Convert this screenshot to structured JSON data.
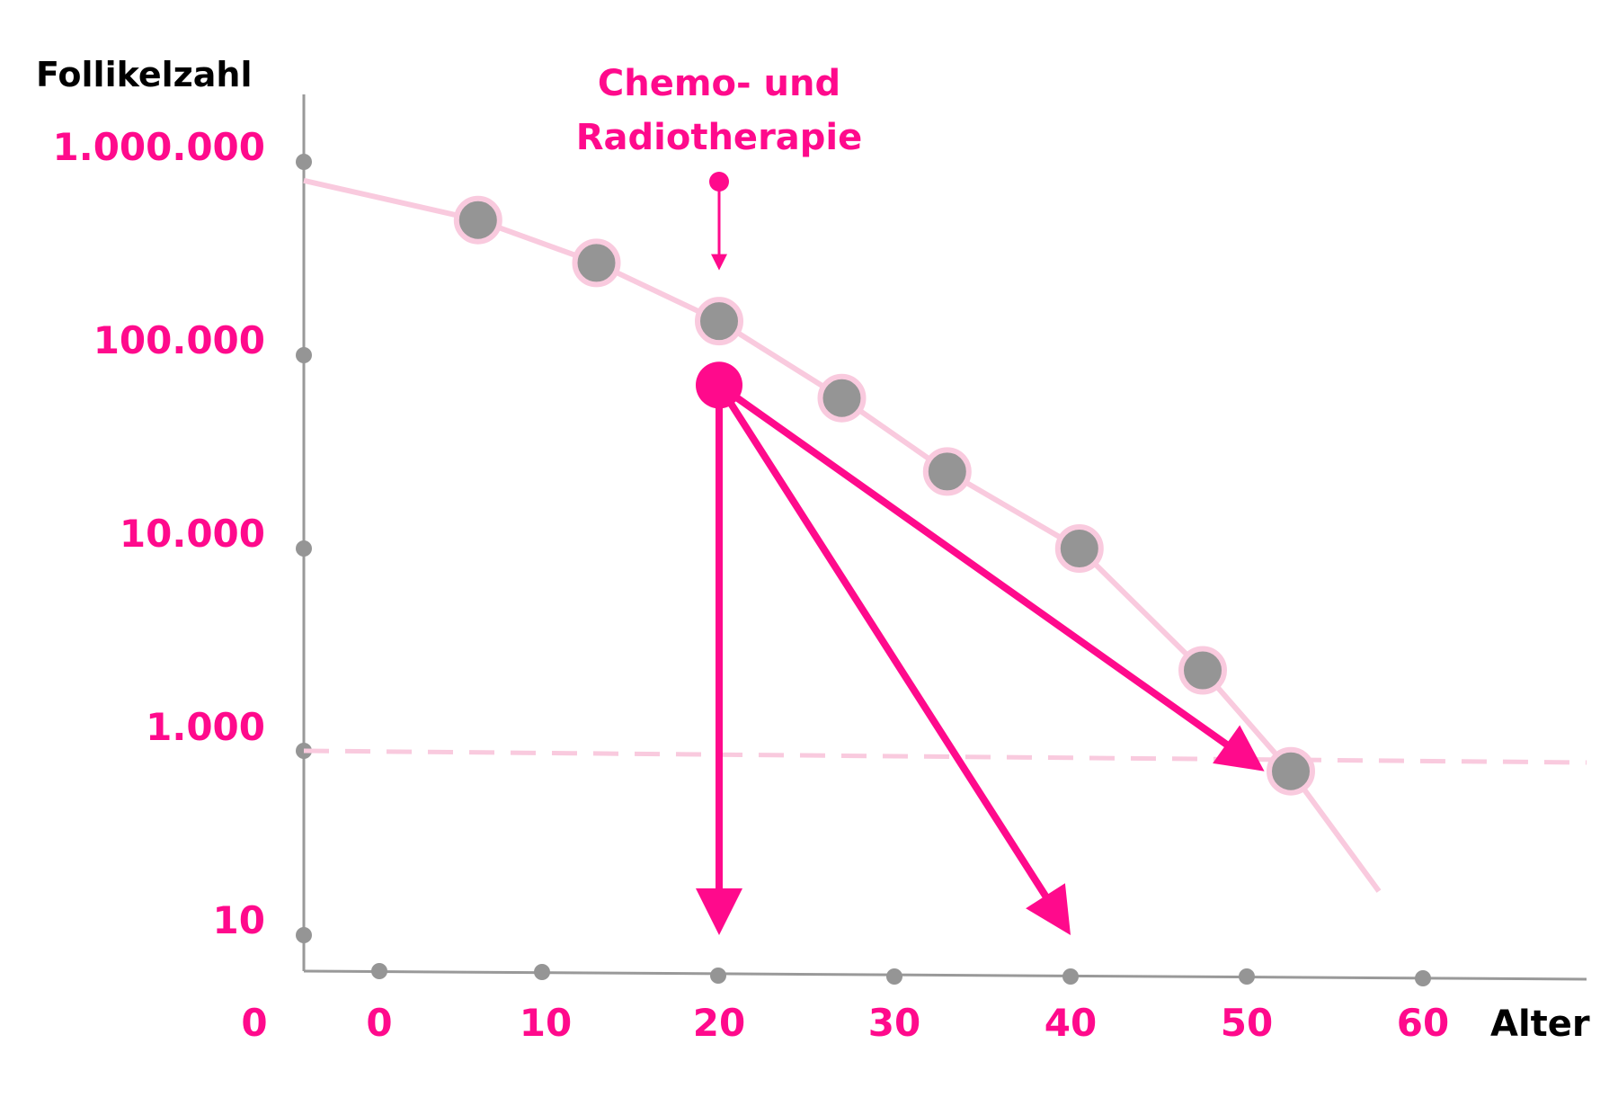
{
  "chart_data": {
    "type": "line",
    "title": "",
    "ylabel": "Follikelzahl",
    "xlabel": "Alter",
    "y_scale": "log",
    "x_ticks": [
      "0",
      "10",
      "20",
      "30",
      "40",
      "50",
      "60"
    ],
    "y_ticks": [
      "0",
      "10",
      "1.000",
      "10.000",
      "100.000",
      "1.000.000"
    ],
    "annotation": {
      "text_line1": "Chemo- und",
      "text_line2": "Radiotherapie",
      "x": 20
    },
    "series": [
      {
        "values": [
          {
            "x": -4,
            "y": 800000
          },
          {
            "x": 6,
            "y": 500000
          },
          {
            "x": 13,
            "y": 300000
          },
          {
            "x": 20,
            "y": 150000
          },
          {
            "x": 27,
            "y": 60000
          },
          {
            "x": 33,
            "y": 25000
          },
          {
            "x": 40.5,
            "y": 10000
          },
          {
            "x": 47.5,
            "y": 2500
          },
          {
            "x": 52.5,
            "y": 600
          },
          {
            "x": 57.5,
            "y": 30
          }
        ]
      }
    ],
    "threshold": {
      "y": 600,
      "style": "dashed"
    },
    "after_therapy_start": {
      "x": 20,
      "y": 70000
    },
    "projections": [
      {
        "x_end": 20,
        "y_end": 10
      },
      {
        "x_end": 40,
        "y_end": 10
      },
      {
        "x_end": 51,
        "y_end": 600
      }
    ],
    "colors": {
      "accent": "#ff0a8c",
      "curve": "#f9cade",
      "points": "#959595",
      "point_border": "#f9cade",
      "axis": "#999999",
      "axis_labels": "#000000"
    }
  }
}
